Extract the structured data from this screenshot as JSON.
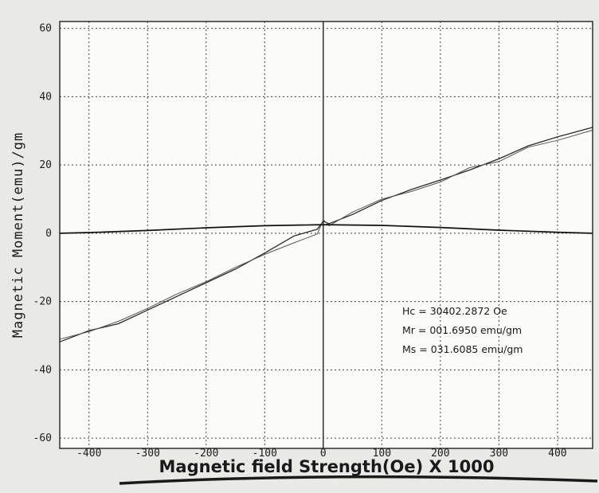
{
  "chart_data": {
    "type": "line",
    "title": "",
    "xlabel": "Magnetic field Strength(Oe) X 1000",
    "ylabel": "Magnetic Moment(emu)/gm",
    "xlim": [
      -450,
      460
    ],
    "ylim": [
      -63,
      62
    ],
    "x_ticks": [
      -400,
      -300,
      -200,
      -100,
      0,
      100,
      200,
      300,
      400
    ],
    "y_ticks": [
      60,
      40,
      20,
      0,
      -20,
      -40,
      -60
    ],
    "grid": true,
    "legend": "none",
    "annotations": [
      "Hc = 30402.2872 Oe",
      "Mr = 001.6950 emu/gm",
      "Ms = 031.6085 emu/gm"
    ],
    "series": [
      {
        "x": [
          -450,
          -400,
          -350,
          -300,
          -250,
          -200,
          -150,
          -100,
          -50,
          -10,
          0,
          10,
          50,
          100,
          150,
          200,
          250,
          300,
          350,
          400,
          460
        ],
        "y": [
          -31.8,
          -28.5,
          -26.5,
          -22.5,
          -18.5,
          -14.5,
          -10.5,
          -5.8,
          -0.8,
          1.2,
          3.5,
          2.8,
          5.5,
          9.6,
          12.8,
          15.6,
          18.5,
          21.8,
          25.6,
          28.2,
          31.0
        ]
      },
      {
        "x": [
          -450,
          -400,
          -350,
          -300,
          -250,
          -200,
          -150,
          -100,
          -50,
          -10,
          0,
          10,
          50,
          100,
          150,
          200,
          250,
          300,
          350,
          400,
          460
        ],
        "y": [
          -31.0,
          -28.8,
          -25.8,
          -22.0,
          -17.8,
          -14.2,
          -10.0,
          -6.2,
          -2.8,
          -0.2,
          4.0,
          2.2,
          6.2,
          10.0,
          12.2,
          15.0,
          19.2,
          21.0,
          25.2,
          27.2,
          30.2
        ]
      },
      {
        "x": [
          -450,
          -400,
          -300,
          -200,
          -100,
          0,
          100,
          200,
          300,
          400,
          460
        ],
        "y": [
          0.0,
          0.2,
          0.8,
          1.6,
          2.2,
          2.5,
          2.3,
          1.7,
          0.9,
          0.3,
          0.0
        ]
      }
    ]
  }
}
